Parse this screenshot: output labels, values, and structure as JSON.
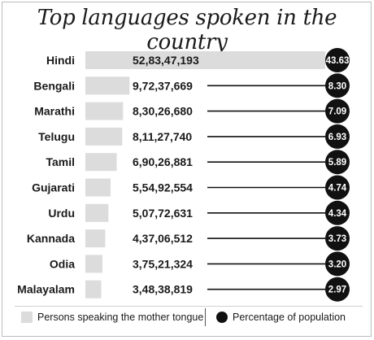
{
  "chart_data": {
    "type": "bar",
    "title": "Top languages spoken in the country",
    "categories": [
      "Hindi",
      "Bengali",
      "Marathi",
      "Telugu",
      "Tamil",
      "Gujarati",
      "Urdu",
      "Kannada",
      "Odia",
      "Malayalam"
    ],
    "series": [
      {
        "name": "Persons speaking the mother tongue",
        "values": [
          528347193,
          97237669,
          83026680,
          81127740,
          69026881,
          55492554,
          50772631,
          43706512,
          37521324,
          34838819
        ],
        "labels": [
          "52,83,47,193",
          "9,72,37,669",
          "8,30,26,680",
          "8,11,27,740",
          "6,90,26,881",
          "5,54,92,554",
          "5,07,72,631",
          "4,37,06,512",
          "3,75,21,324",
          "3,48,38,819"
        ]
      },
      {
        "name": "Percentage of population",
        "values": [
          43.63,
          8.3,
          7.09,
          6.93,
          5.89,
          4.74,
          4.34,
          3.73,
          3.2,
          2.97
        ],
        "labels": [
          "43.63",
          "8.30",
          "7.09",
          "6.93",
          "5.89",
          "4.74",
          "4.34",
          "3.73",
          "3.20",
          "2.97"
        ]
      }
    ],
    "bar_color": "#dcdcdc",
    "dot_color": "#111111",
    "legend_position": "bottom",
    "grid": false
  }
}
